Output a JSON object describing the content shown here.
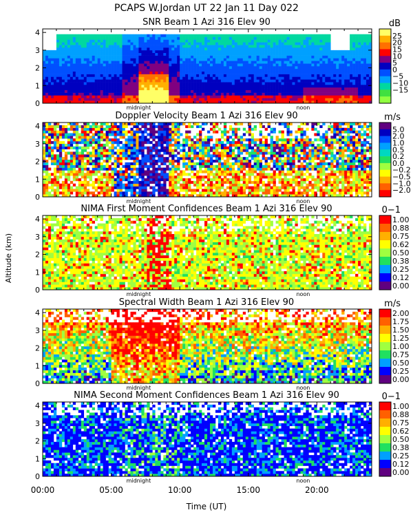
{
  "title": "PCAPS W.Jordan UT  22 Jan 11 Day 022",
  "y_axis_label": "Altitude (km)",
  "x_axis_label": "Time (UT)",
  "x_tick_labels": [
    "00:00",
    "05:00",
    "10:00",
    "15:00",
    "20:00"
  ],
  "markers": [
    "midnight",
    "noon"
  ],
  "chart_data": [
    {
      "type": "heatmap",
      "title": "SNR Beam 1 Azi 316 Elev 90",
      "unit": "dB",
      "xlim": [
        0,
        24
      ],
      "ylim": [
        0,
        4.2
      ],
      "y_ticks": [
        "0",
        "1",
        "2",
        "3",
        "4"
      ],
      "colorbar_labels": [
        "25",
        "20",
        "15",
        "10",
        "5",
        "0",
        "−5",
        "−10",
        "−15"
      ],
      "colors": [
        "#ffff66",
        "#ffb000",
        "#ff7000",
        "#ff0000",
        "#800080",
        "#0000c0",
        "#0050ff",
        "#00a0ff",
        "#00d8a0",
        "#40e040",
        "#90ff40"
      ]
    },
    {
      "type": "heatmap",
      "title": "Doppler Velocity Beam 1 Azi 316 Elev 90",
      "unit": "m/s",
      "xlim": [
        0,
        24
      ],
      "ylim": [
        0,
        4.2
      ],
      "y_ticks": [
        "0",
        "1",
        "2",
        "3",
        "4"
      ],
      "colorbar_labels": [
        "5.0",
        "2.0",
        "1.0",
        "0.5",
        "0.2",
        "0.0",
        "−0.2",
        "−0.5",
        "−1.0",
        "−2.0"
      ],
      "colors": [
        "#600080",
        "#0000c0",
        "#0050ff",
        "#00a0ff",
        "#00d8c0",
        "#20e060",
        "#a0ff40",
        "#ffff00",
        "#ffb000",
        "#ff6000",
        "#ff0000"
      ]
    },
    {
      "type": "heatmap",
      "title": "NIMA First Moment Confidences Beam 1 Azi 316 Elev 90",
      "unit": "0−1",
      "xlim": [
        0,
        24
      ],
      "ylim": [
        0,
        4.2
      ],
      "y_ticks": [
        "0",
        "1",
        "2",
        "3",
        "4"
      ],
      "colorbar_labels": [
        "1.00",
        "0.88",
        "0.75",
        "0.62",
        "0.50",
        "0.38",
        "0.25",
        "0.12",
        "0.00"
      ],
      "colors": [
        "#ff0000",
        "#ff6000",
        "#ffb000",
        "#ffff00",
        "#a0ff40",
        "#20e060",
        "#00a0ff",
        "#0000ff",
        "#600080"
      ]
    },
    {
      "type": "heatmap",
      "title": "Spectral Width Beam 1 Azi 316 Elev 90",
      "unit": "m/s",
      "xlim": [
        0,
        24
      ],
      "ylim": [
        0,
        4.2
      ],
      "y_ticks": [
        "0",
        "1",
        "2",
        "3",
        "4"
      ],
      "colorbar_labels": [
        "2.00",
        "1.75",
        "1.50",
        "1.25",
        "1.00",
        "0.75",
        "0.50",
        "0.25",
        "0.00"
      ],
      "colors": [
        "#ff0000",
        "#ff6000",
        "#ffb000",
        "#ffff00",
        "#a0ff40",
        "#20e060",
        "#00a0ff",
        "#0000ff",
        "#600080"
      ]
    },
    {
      "type": "heatmap",
      "title": "NIMA Second Moment Confidences Beam 1 Azi 316 Elev 90",
      "unit": "0−1",
      "xlim": [
        0,
        24
      ],
      "ylim": [
        0,
        4.2
      ],
      "y_ticks": [
        "0",
        "1",
        "2",
        "3",
        "4"
      ],
      "colorbar_labels": [
        "1.00",
        "0.88",
        "0.75",
        "0.62",
        "0.50",
        "0.38",
        "0.25",
        "0.12",
        "0.00"
      ],
      "colors": [
        "#ff0000",
        "#ff6000",
        "#ffb000",
        "#ffff00",
        "#a0ff40",
        "#20e060",
        "#00a0ff",
        "#0000ff",
        "#600080"
      ]
    }
  ]
}
